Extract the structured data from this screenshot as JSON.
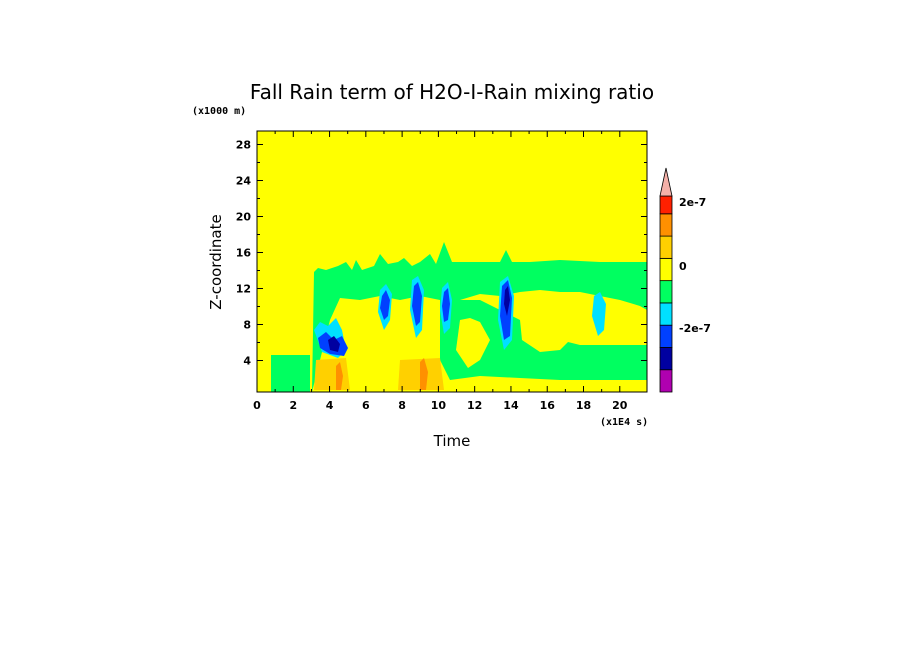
{
  "chart_data": {
    "type": "heatmap",
    "title": "Fall Rain term of H2O-I-Rain mixing ratio",
    "xlabel": "Time",
    "ylabel": "Z-coordinate",
    "x_unit": "(x1E4 s)",
    "y_unit": "(x1000 m)",
    "xlim": [
      0,
      21.5
    ],
    "ylim": [
      0.5,
      29.5
    ],
    "x_ticks": [
      "0",
      "2",
      "4",
      "6",
      "8",
      "10",
      "12",
      "14",
      "16",
      "18",
      "20"
    ],
    "y_ticks": [
      "4",
      "8",
      "12",
      "16",
      "20",
      "24",
      "28"
    ],
    "colorbar": {
      "tick_labels": [
        "2e-7",
        "0",
        "-2e-7"
      ],
      "colors": [
        "#b000b0",
        "#0000a0",
        "#0040ff",
        "#00e0ff",
        "#00ff60",
        "#ffff00",
        "#ffd000",
        "#ff9000",
        "#ff2000"
      ],
      "extend_top_color": "#f4b0a8"
    },
    "colors": {
      "background_zero": "#ffff00",
      "weak_negative": "#00ff60",
      "moderate_negative": "#00e0ff",
      "strong_negative": "#0040ff",
      "very_strong_negative": "#0000a0",
      "weak_positive": "#ffd000",
      "moderate_positive": "#ff9000"
    }
  }
}
